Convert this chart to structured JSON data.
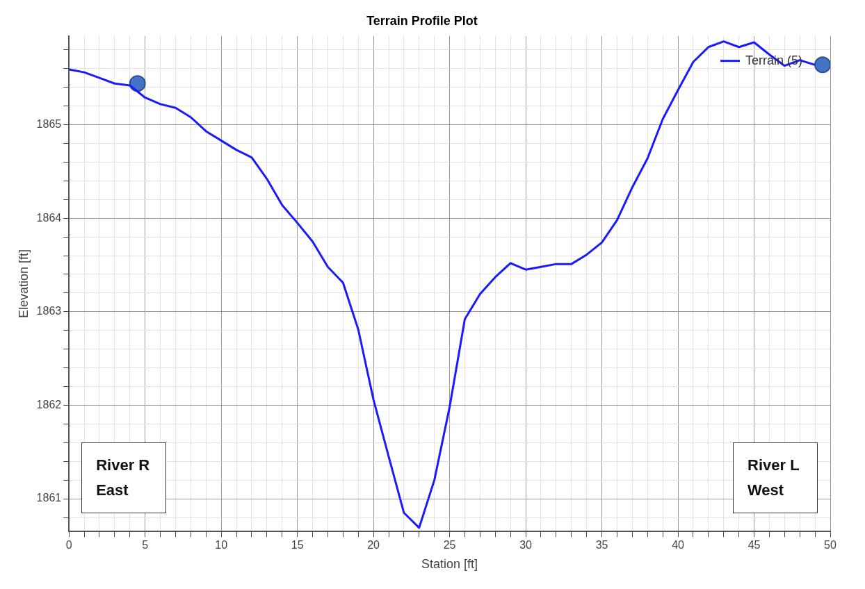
{
  "chart_data": {
    "type": "line",
    "title": "Terrain Profile Plot",
    "xlabel": "Station [ft]",
    "ylabel": "Elevation [ft]",
    "xlim": [
      0,
      50
    ],
    "ylim": [
      1860.65,
      1865.95
    ],
    "xticks": [
      0,
      {
        "value": 1,
        "label": null
      },
      {
        "value": 2,
        "label": null
      },
      {
        "value": 3,
        "label": null
      },
      {
        "value": 4,
        "label": null
      },
      5,
      {
        "value": 6,
        "label": null
      },
      {
        "value": 7,
        "label": null
      },
      {
        "value": 8,
        "label": null
      },
      {
        "value": 9,
        "label": null
      },
      10,
      {
        "value": 11,
        "label": null
      },
      {
        "value": 12,
        "label": null
      },
      {
        "value": 13,
        "label": null
      },
      {
        "value": 14,
        "label": null
      },
      15,
      {
        "value": 16,
        "label": null
      },
      {
        "value": 17,
        "label": null
      },
      {
        "value": 18,
        "label": null
      },
      {
        "value": 19,
        "label": null
      },
      20,
      {
        "value": 21,
        "label": null
      },
      {
        "value": 22,
        "label": null
      },
      {
        "value": 23,
        "label": null
      },
      {
        "value": 24,
        "label": null
      },
      25,
      {
        "value": 26,
        "label": null
      },
      {
        "value": 27,
        "label": null
      },
      {
        "value": 28,
        "label": null
      },
      {
        "value": 29,
        "label": null
      },
      30,
      {
        "value": 31,
        "label": null
      },
      {
        "value": 32,
        "label": null
      },
      {
        "value": 33,
        "label": null
      },
      {
        "value": 34,
        "label": null
      },
      35,
      {
        "value": 36,
        "label": null
      },
      {
        "value": 37,
        "label": null
      },
      {
        "value": 38,
        "label": null
      },
      {
        "value": 39,
        "label": null
      },
      40,
      {
        "value": 41,
        "label": null
      },
      {
        "value": 42,
        "label": null
      },
      {
        "value": 43,
        "label": null
      },
      {
        "value": 44,
        "label": null
      },
      45,
      {
        "value": 46,
        "label": null
      },
      {
        "value": 47,
        "label": null
      },
      {
        "value": 48,
        "label": null
      },
      {
        "value": 49,
        "label": null
      },
      50
    ],
    "yticks": [
      {
        "value": 1860.8,
        "label": null
      },
      1861,
      {
        "value": 1861.2,
        "label": null
      },
      {
        "value": 1861.4,
        "label": null
      },
      {
        "value": 1861.6,
        "label": null
      },
      {
        "value": 1861.8,
        "label": null
      },
      1862,
      {
        "value": 1862.2,
        "label": null
      },
      {
        "value": 1862.4,
        "label": null
      },
      {
        "value": 1862.6,
        "label": null
      },
      {
        "value": 1862.8,
        "label": null
      },
      1863,
      {
        "value": 1863.2,
        "label": null
      },
      {
        "value": 1863.4,
        "label": null
      },
      {
        "value": 1863.6,
        "label": null
      },
      {
        "value": 1863.8,
        "label": null
      },
      1864,
      {
        "value": 1864.2,
        "label": null
      },
      {
        "value": 1864.4,
        "label": null
      },
      {
        "value": 1864.6,
        "label": null
      },
      {
        "value": 1864.8,
        "label": null
      },
      1865,
      {
        "value": 1865.2,
        "label": null
      },
      {
        "value": 1865.4,
        "label": null
      },
      {
        "value": 1865.6,
        "label": null
      },
      {
        "value": 1865.8,
        "label": null
      }
    ],
    "grid": true,
    "legend": "top right",
    "marker": "none",
    "line_style": "solid",
    "annotations": [
      "River R\nEast",
      "River L\nWest"
    ],
    "series": [
      {
        "name": "Terrain (5)",
        "color": "#1a1aff",
        "x": [
          0,
          1,
          2,
          3,
          4,
          5,
          6,
          7,
          8,
          9,
          10,
          11,
          12,
          13,
          14,
          15,
          16,
          17,
          18,
          19,
          20,
          21,
          22,
          23,
          24,
          25,
          26,
          27,
          28,
          29,
          30,
          31,
          32,
          33,
          34,
          35,
          36,
          37,
          38,
          39,
          40,
          41,
          42,
          43,
          44,
          45,
          46,
          47,
          48,
          49
        ],
        "values": [
          1865.59,
          1865.56,
          1865.5,
          1865.44,
          1865.42,
          1865.29,
          1865.22,
          1865.18,
          1865.08,
          1864.93,
          1864.83,
          1864.73,
          1864.65,
          1864.42,
          1864.14,
          1863.95,
          1863.75,
          1863.48,
          1863.31,
          1862.81,
          1862.06,
          1861.45,
          1860.85,
          1860.69,
          1861.2,
          1861.98,
          1862.92,
          1863.19,
          1863.37,
          1863.52,
          1863.45,
          1863.48,
          1863.51,
          1863.51,
          1863.61,
          1863.74,
          1863.98,
          1864.33,
          1864.64,
          1865.06,
          1865.37,
          1865.67,
          1865.83,
          1865.89,
          1865.83,
          1865.88,
          1865.75,
          1865.63,
          1865.69,
          1865.64
        ]
      },
      {
        "type": "scatter",
        "marker": "circle",
        "color": "#4472c4",
        "x": [
          4.5,
          49.5
        ],
        "values": [
          1865.44,
          1865.64
        ]
      }
    ]
  }
}
